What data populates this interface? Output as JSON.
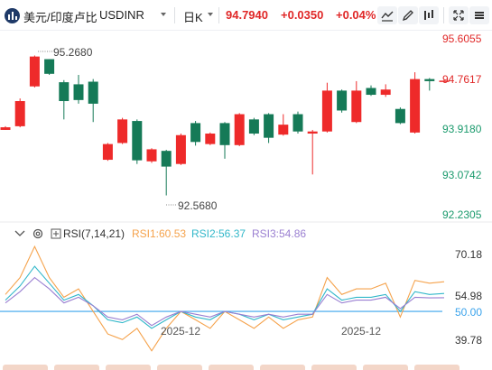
{
  "header": {
    "pair_name": "美元/印度卢比",
    "pair_code": "USDINR",
    "interval": "日K",
    "price": "94.7940",
    "change": "+0.0350",
    "change_pct": "+0.04%",
    "icons": [
      "chart-style-icon",
      "draw-icon",
      "compare-icon",
      "fullscreen-icon",
      "more-icon"
    ]
  },
  "price_axis": [
    "95.6055",
    "94.7617",
    "93.9180",
    "93.0742",
    "92.2305"
  ],
  "price_label_colors": {
    "top": "#e02828",
    "bottom": "#1a9a6c"
  },
  "annotations": {
    "high": "95.2680",
    "low": "92.5680"
  },
  "rsi": {
    "title": "RSI(7,14,21)",
    "rsi1": "RSI1:60.53",
    "rsi2": "RSI2:56.37",
    "rsi3": "RSI3:54.86",
    "axis": [
      "70.18",
      "54.98",
      "50.00",
      "39.78"
    ],
    "colors": {
      "rsi1": "#f5a24b",
      "rsi2": "#31b7c9",
      "rsi3": "#9a7fd1",
      "midline": "#3aa3ec"
    }
  },
  "dates": [
    "2025-12",
    "2025-12"
  ],
  "colors": {
    "up": "#ee2a2a",
    "down": "#157a57",
    "accent": "#e02828"
  },
  "chart_data": {
    "type": "candlestick",
    "symbol": "USDINR",
    "ylim": [
      92.2305,
      95.6055
    ],
    "yticks": [
      95.6055,
      94.7617,
      93.918,
      93.0742,
      92.2305
    ],
    "candles": [
      {
        "o": 93.85,
        "c": 93.9,
        "h": 93.92,
        "l": 93.85
      },
      {
        "o": 93.92,
        "c": 94.4,
        "h": 94.45,
        "l": 93.9
      },
      {
        "o": 94.68,
        "c": 95.25,
        "h": 95.27,
        "l": 94.66
      },
      {
        "o": 95.2,
        "c": 94.92,
        "h": 95.2,
        "l": 94.9
      },
      {
        "o": 94.76,
        "c": 94.4,
        "h": 94.8,
        "l": 94.05
      },
      {
        "o": 94.72,
        "c": 94.42,
        "h": 94.9,
        "l": 94.35
      },
      {
        "o": 94.77,
        "c": 94.35,
        "h": 94.82,
        "l": 94.0
      },
      {
        "o": 93.28,
        "c": 93.58,
        "h": 93.6,
        "l": 93.26
      },
      {
        "o": 93.6,
        "c": 94.05,
        "h": 94.08,
        "l": 93.58
      },
      {
        "o": 94.02,
        "c": 93.27,
        "h": 94.05,
        "l": 93.2
      },
      {
        "o": 93.25,
        "c": 93.48,
        "h": 93.5,
        "l": 93.22
      },
      {
        "o": 93.45,
        "c": 93.15,
        "h": 93.47,
        "l": 92.6
      },
      {
        "o": 93.2,
        "c": 93.75,
        "h": 93.78,
        "l": 93.18
      },
      {
        "o": 93.98,
        "c": 93.62,
        "h": 94.02,
        "l": 93.55
      },
      {
        "o": 93.58,
        "c": 93.78,
        "h": 93.8,
        "l": 93.56
      },
      {
        "o": 93.98,
        "c": 93.56,
        "h": 94.0,
        "l": 93.3
      },
      {
        "o": 93.56,
        "c": 94.15,
        "h": 94.17,
        "l": 93.54
      },
      {
        "o": 94.05,
        "c": 93.78,
        "h": 94.08,
        "l": 93.75
      },
      {
        "o": 94.15,
        "c": 93.7,
        "h": 94.17,
        "l": 93.6
      },
      {
        "o": 93.76,
        "c": 93.95,
        "h": 94.15,
        "l": 93.74
      },
      {
        "o": 94.15,
        "c": 93.82,
        "h": 94.2,
        "l": 93.78
      },
      {
        "o": 93.78,
        "c": 93.82,
        "h": 93.85,
        "l": 93.0
      },
      {
        "o": 93.82,
        "c": 94.6,
        "h": 94.75,
        "l": 93.8
      },
      {
        "o": 94.6,
        "c": 94.22,
        "h": 94.62,
        "l": 94.18
      },
      {
        "o": 94.0,
        "c": 94.6,
        "h": 94.78,
        "l": 93.98
      },
      {
        "o": 94.65,
        "c": 94.52,
        "h": 94.7,
        "l": 94.5
      },
      {
        "o": 94.52,
        "c": 94.62,
        "h": 94.72,
        "l": 94.48
      },
      {
        "o": 94.25,
        "c": 93.98,
        "h": 94.28,
        "l": 93.96
      },
      {
        "o": 93.8,
        "c": 94.82,
        "h": 94.95,
        "l": 93.78
      },
      {
        "o": 94.82,
        "c": 94.78,
        "h": 94.84,
        "l": 94.6
      },
      {
        "o": 94.79,
        "c": 94.79,
        "h": 94.8,
        "l": 94.78
      }
    ],
    "rsi_ylim": [
      35,
      78
    ],
    "rsi_series": [
      {
        "name": "RSI1",
        "values": [
          56,
          62,
          73,
          62,
          55,
          58,
          50,
          42,
          40,
          44,
          36,
          44,
          50,
          47,
          44,
          50,
          47,
          44,
          48,
          44,
          47,
          48,
          62,
          56,
          58,
          58,
          60,
          48,
          61,
          60,
          60.53
        ]
      },
      {
        "name": "RSI2",
        "values": [
          54,
          59,
          66,
          60,
          54,
          56,
          52,
          47,
          46,
          48,
          44,
          47,
          50,
          48,
          47,
          50,
          49,
          47,
          49,
          47,
          48,
          49,
          58,
          54,
          55,
          55,
          56,
          50,
          57,
          56,
          56.37
        ]
      },
      {
        "name": "RSI3",
        "values": [
          53,
          57,
          62,
          58,
          53,
          55,
          52,
          48,
          47,
          49,
          45,
          48,
          50,
          49,
          48,
          50,
          49,
          48,
          49,
          48,
          49,
          49,
          56,
          53,
          54,
          54,
          55,
          51,
          55,
          54.8,
          54.86
        ]
      }
    ],
    "rsi_reference": 50.0,
    "grid": false
  }
}
